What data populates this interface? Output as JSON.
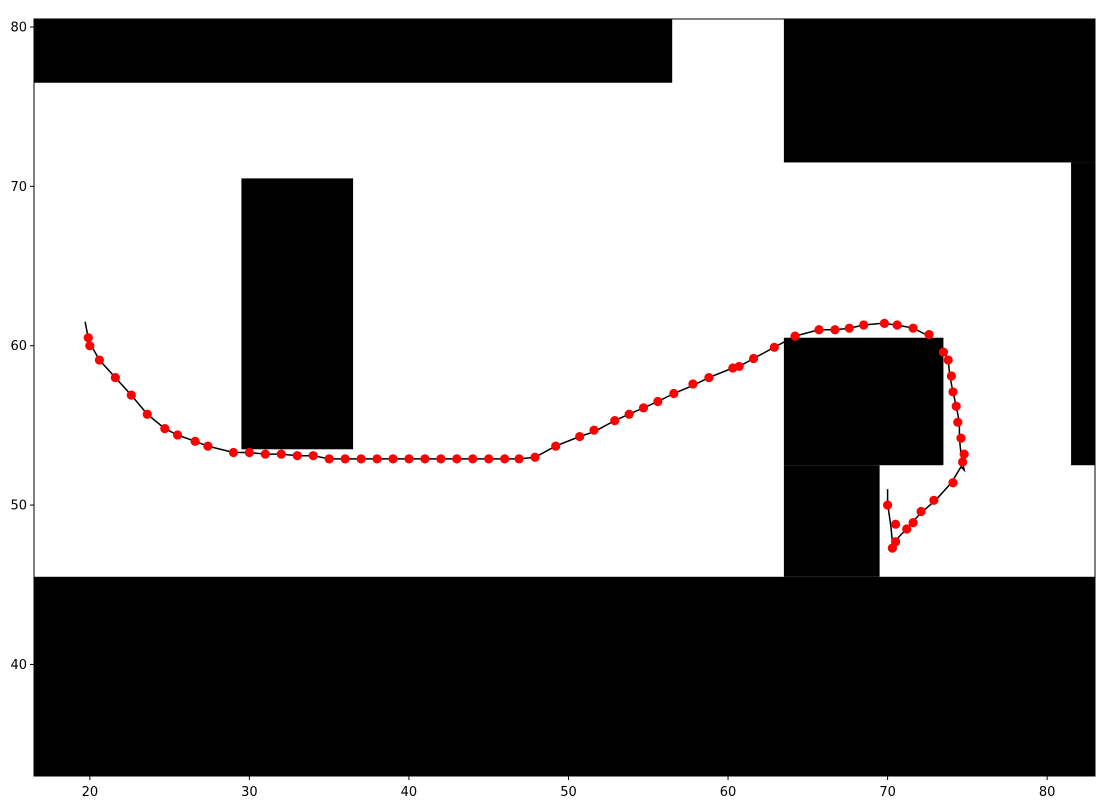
{
  "chart_data": {
    "type": "scatter",
    "title": "",
    "xlabel": "",
    "ylabel": "",
    "xlim": [
      16.5,
      83
    ],
    "ylim": [
      33,
      80.5
    ],
    "x_ticks": [
      20,
      30,
      40,
      50,
      60,
      70,
      80
    ],
    "y_ticks": [
      40,
      50,
      60,
      70,
      80
    ],
    "grid": false,
    "background_color": "#ffffff",
    "obstacle_color": "#000000",
    "path_color": "#000000",
    "marker_color": "#ff0000",
    "obstacles": [
      {
        "x0": 16.5,
        "x1": 56.5,
        "y0": 76.5,
        "y1": 80.5
      },
      {
        "x0": 63.5,
        "x1": 83,
        "y0": 71.5,
        "y1": 80.5
      },
      {
        "x0": 81.5,
        "x1": 83,
        "y0": 52.5,
        "y1": 71.5
      },
      {
        "x0": 29.5,
        "x1": 36.5,
        "y0": 53.5,
        "y1": 70.5
      },
      {
        "x0": 63.5,
        "x1": 73.5,
        "y0": 52.5,
        "y1": 60.5
      },
      {
        "x0": 63.5,
        "x1": 69.5,
        "y0": 45.5,
        "y1": 52.5
      },
      {
        "x0": 16.5,
        "x1": 83,
        "y0": 33,
        "y1": 45.5
      }
    ],
    "path": {
      "x": [
        19.7,
        19.9,
        20.1,
        20.6,
        21.6,
        22.6,
        23.6,
        24.7,
        25.5,
        26.6,
        27.4,
        29.0,
        30.0,
        31.0,
        32.0,
        33.0,
        34.0,
        35.0,
        36.0,
        37.0,
        38.0,
        39.0,
        40.0,
        41.0,
        42.0,
        43.0,
        44.0,
        45.0,
        46.0,
        46.9,
        47.9,
        49.2,
        50.7,
        51.6,
        52.9,
        53.8,
        54.7,
        55.6,
        56.6,
        57.8,
        58.8,
        60.3,
        60.7,
        61.6,
        62.9,
        64.2,
        65.7,
        66.7,
        67.6,
        68.5,
        69.6,
        70.6,
        71.6,
        72.6,
        73.3,
        73.6,
        73.8,
        73.9,
        74.1,
        74.3,
        74.5,
        74.5,
        74.6,
        74.7,
        74.8,
        74.6,
        74.0,
        73.0,
        72.2,
        71.5,
        71.2,
        70.7,
        70.5,
        70.4,
        70.3,
        70.2,
        70.1,
        70.0,
        70.0
      ],
      "y": [
        61.5,
        60.5,
        60.0,
        59.1,
        58.0,
        56.9,
        55.7,
        54.8,
        54.4,
        54.0,
        53.7,
        53.3,
        53.3,
        53.2,
        53.2,
        53.1,
        53.1,
        52.9,
        52.9,
        52.9,
        52.9,
        52.9,
        52.9,
        52.9,
        52.9,
        52.9,
        52.9,
        52.9,
        52.9,
        52.9,
        53.0,
        53.7,
        54.3,
        54.6,
        55.3,
        55.7,
        56.1,
        56.5,
        57.0,
        57.5,
        58.0,
        58.6,
        58.7,
        59.2,
        59.9,
        60.6,
        61.0,
        61.0,
        61.1,
        61.3,
        61.4,
        61.3,
        61.1,
        60.6,
        60.0,
        59.6,
        59.1,
        58.1,
        57.1,
        56.2,
        55.2,
        54.2,
        53.2,
        52.6,
        52.2,
        52.4,
        51.4,
        50.3,
        49.6,
        48.9,
        48.5,
        48.0,
        47.6,
        47.3,
        47.7,
        48.7,
        49.4,
        50.1,
        51.0
      ]
    },
    "points": {
      "x": [
        19.9,
        20.0,
        20.6,
        21.6,
        22.6,
        23.6,
        24.7,
        25.5,
        26.6,
        27.4,
        29.0,
        30.0,
        31.0,
        32.0,
        33.0,
        34.0,
        35.0,
        36.0,
        37.0,
        38.0,
        39.0,
        40.0,
        41.0,
        42.0,
        43.0,
        44.0,
        45.0,
        46.0,
        46.9,
        47.9,
        49.2,
        50.7,
        51.6,
        52.9,
        53.8,
        54.7,
        55.6,
        56.6,
        57.8,
        58.8,
        60.3,
        60.7,
        61.6,
        62.9,
        64.2,
        65.7,
        66.7,
        67.6,
        68.5,
        69.8,
        70.6,
        71.6,
        72.6,
        73.5,
        73.8,
        74.0,
        74.1,
        74.3,
        74.4,
        74.6,
        74.7,
        74.8,
        74.1,
        72.9,
        72.1,
        71.6,
        71.2,
        70.5,
        70.5,
        70.3,
        70.0
      ],
      "y": [
        60.5,
        60.0,
        59.1,
        58.0,
        56.9,
        55.7,
        54.8,
        54.4,
        54.0,
        53.7,
        53.3,
        53.3,
        53.2,
        53.2,
        53.1,
        53.1,
        52.9,
        52.9,
        52.9,
        52.9,
        52.9,
        52.9,
        52.9,
        52.9,
        52.9,
        52.9,
        52.9,
        52.9,
        52.9,
        53.0,
        53.7,
        54.3,
        54.7,
        55.3,
        55.7,
        56.1,
        56.5,
        57.0,
        57.6,
        58.0,
        58.6,
        58.7,
        59.2,
        59.9,
        60.6,
        61.0,
        61.0,
        61.1,
        61.3,
        61.4,
        61.3,
        61.1,
        60.7,
        59.6,
        59.1,
        58.1,
        57.1,
        56.2,
        55.2,
        54.2,
        52.7,
        53.2,
        51.4,
        50.3,
        49.6,
        48.9,
        48.5,
        47.7,
        48.8,
        47.3,
        50.0
      ]
    }
  }
}
